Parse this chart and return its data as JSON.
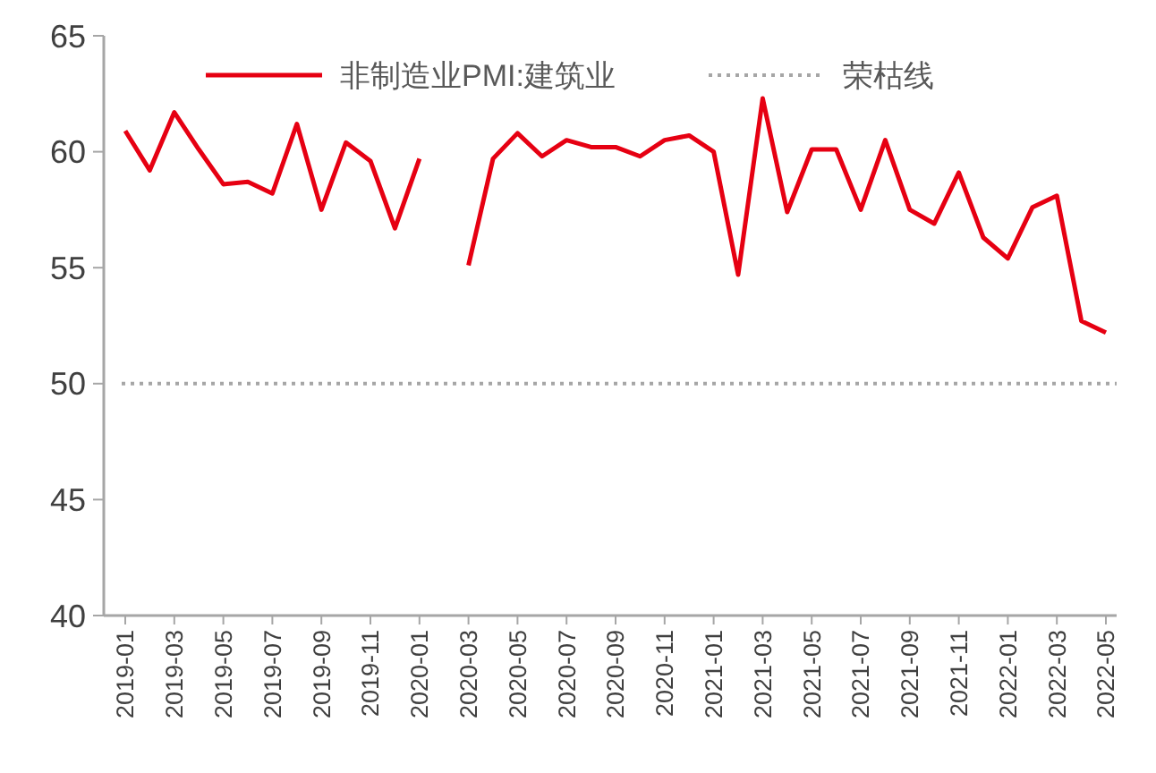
{
  "chart_data": {
    "type": "line",
    "categories": [
      "2019-01",
      null,
      "2019-03",
      null,
      "2019-05",
      null,
      "2019-07",
      null,
      "2019-09",
      null,
      "2019-11",
      null,
      "2020-01",
      null,
      "2020-03",
      null,
      "2020-05",
      null,
      "2020-07",
      null,
      "2020-09",
      null,
      "2020-11",
      null,
      "2021-01",
      null,
      "2021-03",
      null,
      "2021-05",
      null,
      "2021-07",
      null,
      "2021-09",
      null,
      "2021-11",
      null,
      "2022-01",
      null,
      "2022-03",
      null,
      "2022-05"
    ],
    "series": [
      {
        "name": "非制造业PMI:建筑业",
        "color": "#e60012",
        "values": [
          60.9,
          59.2,
          61.7,
          60.1,
          58.6,
          58.7,
          58.2,
          61.2,
          57.5,
          60.4,
          59.6,
          56.7,
          59.7,
          null,
          55.1,
          59.7,
          60.8,
          59.8,
          60.5,
          60.2,
          60.2,
          59.8,
          60.5,
          60.7,
          60.0,
          54.7,
          62.3,
          57.4,
          60.1,
          60.1,
          57.5,
          60.5,
          57.5,
          56.9,
          59.1,
          56.3,
          55.4,
          57.6,
          58.1,
          52.7,
          52.2
        ]
      }
    ],
    "ylim": [
      40,
      65
    ],
    "yticks": [
      40,
      45,
      50,
      55,
      60,
      65
    ],
    "ref_lines": [
      {
        "axis": "y",
        "value": 50,
        "label": "荣枯线",
        "color": "#a6a6a6",
        "line_style": "dotted"
      }
    ],
    "legend": "top",
    "grid": false,
    "line_style": "solid",
    "marker": "none"
  }
}
